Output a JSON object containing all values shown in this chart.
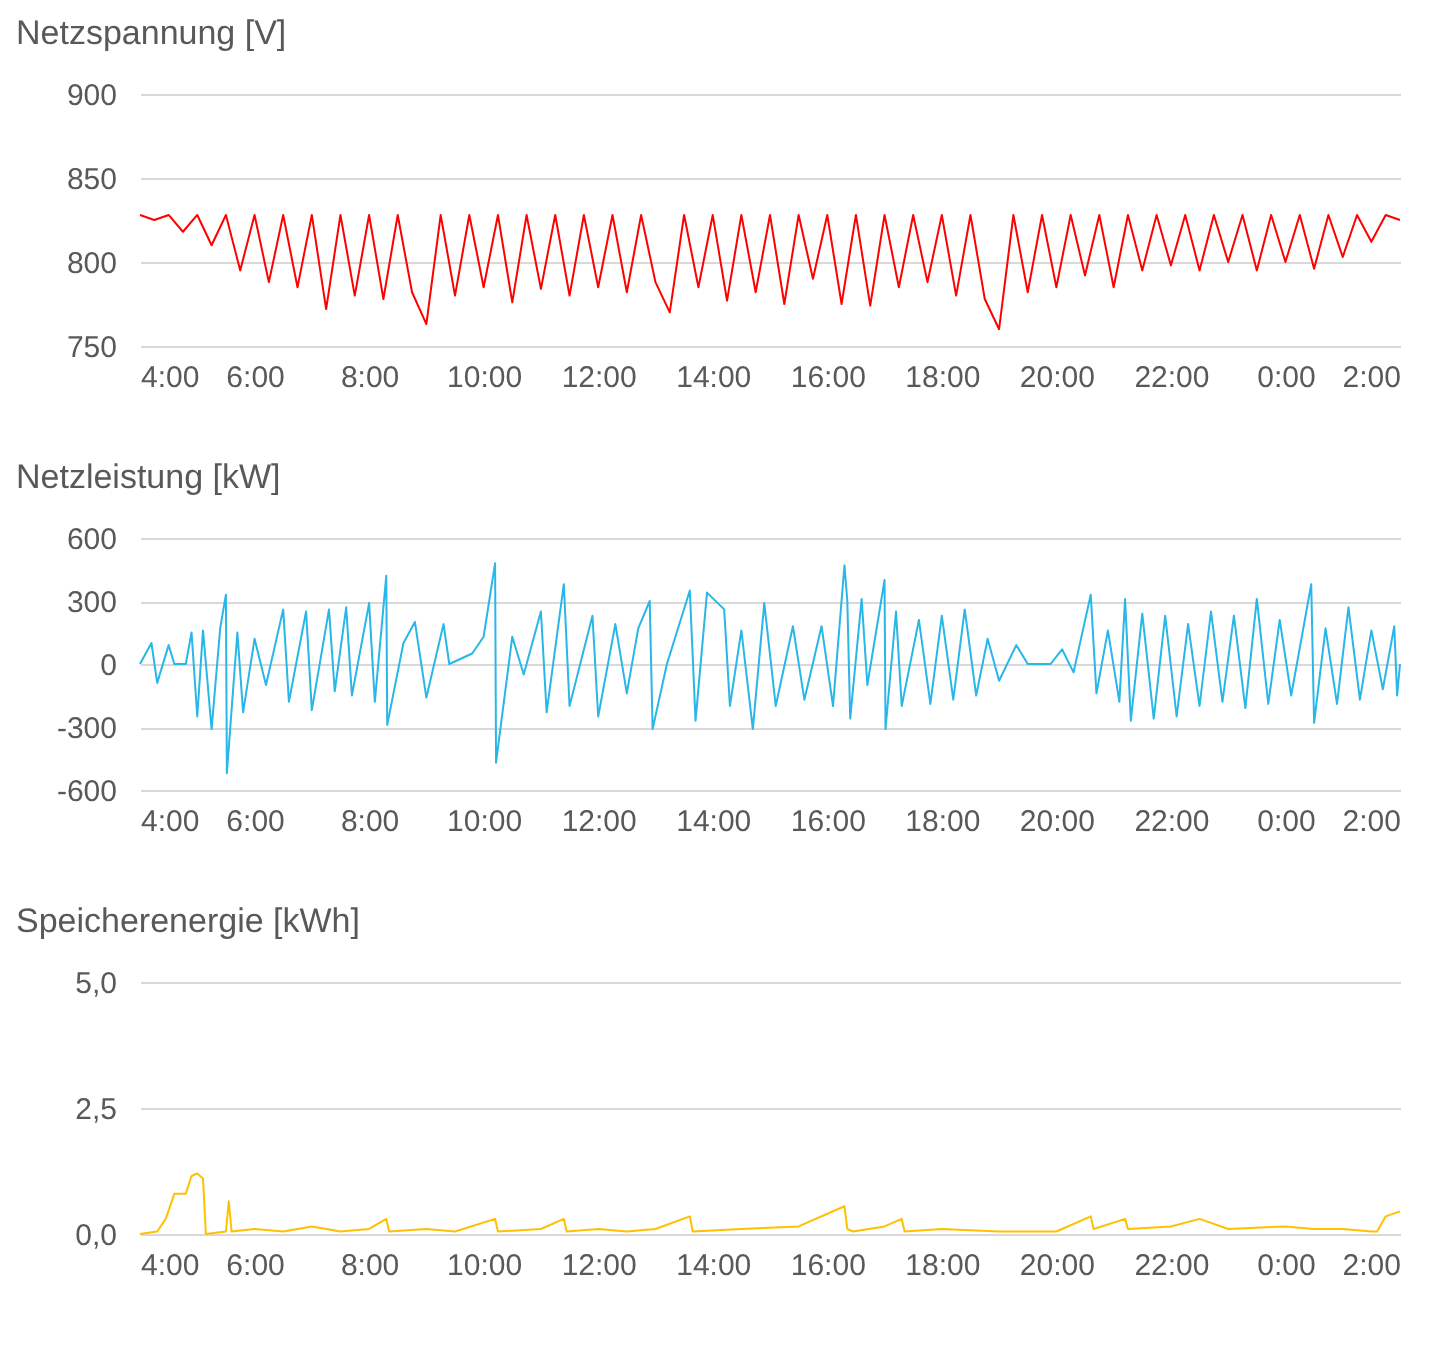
{
  "chart_data": [
    {
      "type": "line",
      "title": "Netzspannung [V]",
      "grid": "y",
      "xlim": [
        "2000-01-01T04:00",
        "2000-01-02T02:00"
      ],
      "xticks": [
        {
          "value": "2000-01-01T04:00",
          "label": "4:00"
        },
        {
          "value": "2000-01-01T06:00",
          "label": "6:00"
        },
        {
          "value": "2000-01-01T08:00",
          "label": "8:00"
        },
        {
          "value": "2000-01-01T10:00",
          "label": "10:00"
        },
        {
          "value": "2000-01-01T12:00",
          "label": "12:00"
        },
        {
          "value": "2000-01-01T14:00",
          "label": "14:00"
        },
        {
          "value": "2000-01-01T16:00",
          "label": "16:00"
        },
        {
          "value": "2000-01-01T18:00",
          "label": "18:00"
        },
        {
          "value": "2000-01-01T20:00",
          "label": "20:00"
        },
        {
          "value": "2000-01-01T22:00",
          "label": "22:00"
        },
        {
          "value": "2000-01-02T00:00",
          "label": "0:00"
        },
        {
          "value": "2000-01-02T02:00",
          "label": "2:00"
        }
      ],
      "ylim": [
        750,
        900
      ],
      "yticks": [
        750,
        800,
        850,
        900
      ],
      "x": [
        "2000-01-01T04:00",
        "2000-01-01T04:15",
        "2000-01-01T04:30",
        "2000-01-01T04:45",
        "2000-01-01T05:00",
        "2000-01-01T05:15",
        "2000-01-01T05:30",
        "2000-01-01T05:45",
        "2000-01-01T06:00",
        "2000-01-01T06:15",
        "2000-01-01T06:30",
        "2000-01-01T06:45",
        "2000-01-01T07:00",
        "2000-01-01T07:15",
        "2000-01-01T07:30",
        "2000-01-01T07:45",
        "2000-01-01T08:00",
        "2000-01-01T08:15",
        "2000-01-01T08:30",
        "2000-01-01T08:45",
        "2000-01-01T09:00",
        "2000-01-01T09:15",
        "2000-01-01T09:30",
        "2000-01-01T09:45",
        "2000-01-01T10:00",
        "2000-01-01T10:15",
        "2000-01-01T10:30",
        "2000-01-01T10:45",
        "2000-01-01T11:00",
        "2000-01-01T11:15",
        "2000-01-01T11:30",
        "2000-01-01T11:45",
        "2000-01-01T12:00",
        "2000-01-01T12:15",
        "2000-01-01T12:30",
        "2000-01-01T12:45",
        "2000-01-01T13:00",
        "2000-01-01T13:15",
        "2000-01-01T13:30",
        "2000-01-01T13:45",
        "2000-01-01T14:00",
        "2000-01-01T14:15",
        "2000-01-01T14:30",
        "2000-01-01T14:45",
        "2000-01-01T15:00",
        "2000-01-01T15:15",
        "2000-01-01T15:30",
        "2000-01-01T15:45",
        "2000-01-01T16:00",
        "2000-01-01T16:15",
        "2000-01-01T16:30",
        "2000-01-01T16:45",
        "2000-01-01T17:00",
        "2000-01-01T17:15",
        "2000-01-01T17:30",
        "2000-01-01T17:45",
        "2000-01-01T18:00",
        "2000-01-01T18:15",
        "2000-01-01T18:30",
        "2000-01-01T18:45",
        "2000-01-01T19:00",
        "2000-01-01T19:15",
        "2000-01-01T19:30",
        "2000-01-01T19:45",
        "2000-01-01T20:00",
        "2000-01-01T20:15",
        "2000-01-01T20:30",
        "2000-01-01T20:45",
        "2000-01-01T21:00",
        "2000-01-01T21:15",
        "2000-01-01T21:30",
        "2000-01-01T21:45",
        "2000-01-01T22:00",
        "2000-01-01T22:15",
        "2000-01-01T22:30",
        "2000-01-01T22:45",
        "2000-01-01T23:00",
        "2000-01-01T23:15",
        "2000-01-01T23:30",
        "2000-01-01T23:45",
        "2000-01-02T00:00",
        "2000-01-02T00:15",
        "2000-01-02T00:30",
        "2000-01-02T00:45",
        "2000-01-02T01:00",
        "2000-01-02T01:15",
        "2000-01-02T01:30",
        "2000-01-02T01:45",
        "2000-01-02T02:00"
      ],
      "series": [
        {
          "color": "#ff0000",
          "values": [
            828,
            825,
            828,
            818,
            828,
            810,
            828,
            795,
            828,
            788,
            828,
            785,
            828,
            772,
            828,
            780,
            828,
            778,
            828,
            782,
            763,
            828,
            780,
            828,
            785,
            828,
            776,
            828,
            784,
            828,
            780,
            828,
            785,
            828,
            782,
            828,
            788,
            770,
            828,
            785,
            828,
            777,
            828,
            782,
            828,
            775,
            828,
            790,
            828,
            775,
            828,
            774,
            828,
            785,
            828,
            788,
            828,
            780,
            828,
            778,
            760,
            828,
            782,
            828,
            785,
            828,
            792,
            828,
            785,
            828,
            795,
            828,
            798,
            828,
            795,
            828,
            800,
            828,
            795,
            828,
            800,
            828,
            796,
            828,
            803,
            828,
            812,
            828,
            825
          ]
        }
      ]
    },
    {
      "type": "line",
      "title": "Netzleistung [kW]",
      "grid": "y",
      "xlim": [
        "2000-01-01T04:00",
        "2000-01-02T02:00"
      ],
      "xticks": [
        {
          "value": "2000-01-01T04:00",
          "label": "4:00"
        },
        {
          "value": "2000-01-01T06:00",
          "label": "6:00"
        },
        {
          "value": "2000-01-01T08:00",
          "label": "8:00"
        },
        {
          "value": "2000-01-01T10:00",
          "label": "10:00"
        },
        {
          "value": "2000-01-01T12:00",
          "label": "12:00"
        },
        {
          "value": "2000-01-01T14:00",
          "label": "14:00"
        },
        {
          "value": "2000-01-01T16:00",
          "label": "16:00"
        },
        {
          "value": "2000-01-01T18:00",
          "label": "18:00"
        },
        {
          "value": "2000-01-01T20:00",
          "label": "20:00"
        },
        {
          "value": "2000-01-01T22:00",
          "label": "22:00"
        },
        {
          "value": "2000-01-02T00:00",
          "label": "0:00"
        },
        {
          "value": "2000-01-02T02:00",
          "label": "2:00"
        }
      ],
      "ylim": [
        -600,
        600
      ],
      "yticks": [
        -600,
        -300,
        0,
        300,
        600
      ],
      "x": [
        "2000-01-01T04:00",
        "2000-01-01T04:12",
        "2000-01-01T04:18",
        "2000-01-01T04:30",
        "2000-01-01T04:36",
        "2000-01-01T04:48",
        "2000-01-01T04:54",
        "2000-01-01T05:00",
        "2000-01-01T05:06",
        "2000-01-01T05:15",
        "2000-01-01T05:24",
        "2000-01-01T05:30",
        "2000-01-01T05:31",
        "2000-01-01T05:42",
        "2000-01-01T05:48",
        "2000-01-01T06:00",
        "2000-01-01T06:12",
        "2000-01-01T06:30",
        "2000-01-01T06:36",
        "2000-01-01T06:54",
        "2000-01-01T07:00",
        "2000-01-01T07:18",
        "2000-01-01T07:24",
        "2000-01-01T07:36",
        "2000-01-01T07:42",
        "2000-01-01T08:00",
        "2000-01-01T08:06",
        "2000-01-01T08:18",
        "2000-01-01T08:19",
        "2000-01-01T08:36",
        "2000-01-01T08:48",
        "2000-01-01T09:00",
        "2000-01-01T09:18",
        "2000-01-01T09:24",
        "2000-01-01T09:48",
        "2000-01-01T10:00",
        "2000-01-01T10:12",
        "2000-01-01T10:13",
        "2000-01-01T10:30",
        "2000-01-01T10:42",
        "2000-01-01T11:00",
        "2000-01-01T11:06",
        "2000-01-01T11:24",
        "2000-01-01T11:30",
        "2000-01-01T11:54",
        "2000-01-01T12:00",
        "2000-01-01T12:18",
        "2000-01-01T12:30",
        "2000-01-01T12:42",
        "2000-01-01T12:54",
        "2000-01-01T12:57",
        "2000-01-01T13:12",
        "2000-01-01T13:36",
        "2000-01-01T13:42",
        "2000-01-01T13:54",
        "2000-01-01T14:12",
        "2000-01-01T14:18",
        "2000-01-01T14:30",
        "2000-01-01T14:42",
        "2000-01-01T14:54",
        "2000-01-01T15:06",
        "2000-01-01T15:24",
        "2000-01-01T15:36",
        "2000-01-01T15:54",
        "2000-01-01T16:06",
        "2000-01-01T16:18",
        "2000-01-01T16:21",
        "2000-01-01T16:24",
        "2000-01-01T16:36",
        "2000-01-01T16:42",
        "2000-01-01T17:00",
        "2000-01-01T17:01",
        "2000-01-01T17:12",
        "2000-01-01T17:18",
        "2000-01-01T17:36",
        "2000-01-01T17:48",
        "2000-01-01T18:00",
        "2000-01-01T18:12",
        "2000-01-01T18:24",
        "2000-01-01T18:36",
        "2000-01-01T18:48",
        "2000-01-01T19:00",
        "2000-01-01T19:18",
        "2000-01-01T19:30",
        "2000-01-01T19:54",
        "2000-01-01T20:06",
        "2000-01-01T20:18",
        "2000-01-01T20:36",
        "2000-01-01T20:42",
        "2000-01-01T20:54",
        "2000-01-01T21:06",
        "2000-01-01T21:12",
        "2000-01-01T21:18",
        "2000-01-01T21:30",
        "2000-01-01T21:42",
        "2000-01-01T21:54",
        "2000-01-01T22:06",
        "2000-01-01T22:18",
        "2000-01-01T22:30",
        "2000-01-01T22:42",
        "2000-01-01T22:54",
        "2000-01-01T23:06",
        "2000-01-01T23:18",
        "2000-01-01T23:30",
        "2000-01-01T23:42",
        "2000-01-01T23:54",
        "2000-01-02T00:06",
        "2000-01-02T00:27",
        "2000-01-02T00:30",
        "2000-01-02T00:42",
        "2000-01-02T00:54",
        "2000-01-02T01:06",
        "2000-01-02T01:18",
        "2000-01-02T01:30",
        "2000-01-02T01:42",
        "2000-01-02T01:54",
        "2000-01-02T01:57",
        "2000-01-02T02:00"
      ],
      "series": [
        {
          "color": "#29b6e8",
          "values": [
            0,
            100,
            -90,
            90,
            0,
            0,
            150,
            -250,
            160,
            -310,
            170,
            330,
            -520,
            150,
            -230,
            120,
            -100,
            260,
            -180,
            250,
            -220,
            260,
            -130,
            270,
            -150,
            290,
            -180,
            420,
            -290,
            100,
            200,
            -160,
            190,
            0,
            50,
            130,
            480,
            -470,
            130,
            -50,
            250,
            -230,
            380,
            -200,
            230,
            -250,
            190,
            -140,
            170,
            300,
            -310,
            0,
            350,
            -270,
            340,
            260,
            -200,
            160,
            -310,
            290,
            -200,
            180,
            -170,
            180,
            -200,
            470,
            300,
            -260,
            310,
            -100,
            400,
            -310,
            250,
            -200,
            210,
            -190,
            230,
            -170,
            260,
            -150,
            120,
            -80,
            90,
            0,
            0,
            70,
            -40,
            330,
            -140,
            160,
            -180,
            310,
            -270,
            240,
            -260,
            230,
            -250,
            190,
            -200,
            250,
            -180,
            230,
            -210,
            310,
            -190,
            210,
            -150,
            380,
            -280,
            170,
            -190,
            270,
            -170,
            160,
            -120,
            180,
            -150,
            0
          ]
        }
      ]
    },
    {
      "type": "line",
      "title": "Speicherenergie [kWh]",
      "grid": "y",
      "xlim": [
        "2000-01-01T04:00",
        "2000-01-02T02:00"
      ],
      "xticks": [
        {
          "value": "2000-01-01T04:00",
          "label": "4:00"
        },
        {
          "value": "2000-01-01T06:00",
          "label": "6:00"
        },
        {
          "value": "2000-01-01T08:00",
          "label": "8:00"
        },
        {
          "value": "2000-01-01T10:00",
          "label": "10:00"
        },
        {
          "value": "2000-01-01T12:00",
          "label": "12:00"
        },
        {
          "value": "2000-01-01T14:00",
          "label": "14:00"
        },
        {
          "value": "2000-01-01T16:00",
          "label": "16:00"
        },
        {
          "value": "2000-01-01T18:00",
          "label": "18:00"
        },
        {
          "value": "2000-01-01T20:00",
          "label": "20:00"
        },
        {
          "value": "2000-01-01T22:00",
          "label": "22:00"
        },
        {
          "value": "2000-01-02T00:00",
          "label": "0:00"
        },
        {
          "value": "2000-01-02T02:00",
          "label": "2:00"
        }
      ],
      "ylim": [
        0,
        5
      ],
      "yticks": [
        {
          "value": 0,
          "label": "0,0"
        },
        {
          "value": 2.5,
          "label": "2,5"
        },
        {
          "value": 5,
          "label": "5,0"
        }
      ],
      "x": [
        "2000-01-01T04:00",
        "2000-01-01T04:18",
        "2000-01-01T04:27",
        "2000-01-01T04:36",
        "2000-01-01T04:48",
        "2000-01-01T04:54",
        "2000-01-01T05:00",
        "2000-01-01T05:06",
        "2000-01-01T05:09",
        "2000-01-01T05:30",
        "2000-01-01T05:33",
        "2000-01-01T05:36",
        "2000-01-01T06:00",
        "2000-01-01T06:30",
        "2000-01-01T07:00",
        "2000-01-01T07:30",
        "2000-01-01T08:00",
        "2000-01-01T08:18",
        "2000-01-01T08:21",
        "2000-01-01T09:00",
        "2000-01-01T09:30",
        "2000-01-01T10:12",
        "2000-01-01T10:15",
        "2000-01-01T11:00",
        "2000-01-01T11:24",
        "2000-01-01T11:27",
        "2000-01-01T12:00",
        "2000-01-01T12:30",
        "2000-01-01T13:00",
        "2000-01-01T13:36",
        "2000-01-01T13:39",
        "2000-01-01T14:30",
        "2000-01-01T15:30",
        "2000-01-01T16:18",
        "2000-01-01T16:21",
        "2000-01-01T16:27",
        "2000-01-01T17:00",
        "2000-01-01T17:18",
        "2000-01-01T17:21",
        "2000-01-01T18:00",
        "2000-01-01T19:00",
        "2000-01-01T20:00",
        "2000-01-01T20:36",
        "2000-01-01T20:39",
        "2000-01-01T21:12",
        "2000-01-01T21:15",
        "2000-01-01T22:00",
        "2000-01-01T22:30",
        "2000-01-01T23:00",
        "2000-01-02T00:00",
        "2000-01-02T00:30",
        "2000-01-02T01:00",
        "2000-01-02T01:30",
        "2000-01-02T01:36",
        "2000-01-02T01:45",
        "2000-01-02T02:00"
      ],
      "series": [
        {
          "color": "#ffc000",
          "values": [
            0,
            0.05,
            0.3,
            0.8,
            0.8,
            1.15,
            1.2,
            1.1,
            0,
            0.05,
            0.65,
            0.05,
            0.1,
            0.05,
            0.15,
            0.05,
            0.1,
            0.3,
            0.05,
            0.1,
            0.05,
            0.3,
            0.05,
            0.1,
            0.3,
            0.05,
            0.1,
            0.05,
            0.1,
            0.35,
            0.05,
            0.1,
            0.15,
            0.55,
            0.1,
            0.05,
            0.15,
            0.3,
            0.05,
            0.1,
            0.05,
            0.05,
            0.35,
            0.1,
            0.3,
            0.1,
            0.15,
            0.3,
            0.1,
            0.15,
            0.1,
            0.1,
            0.05,
            0.05,
            0.35,
            0.45
          ]
        }
      ]
    }
  ]
}
